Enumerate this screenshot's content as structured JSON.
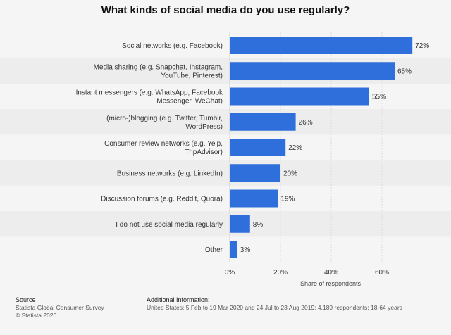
{
  "chart_data": {
    "type": "bar",
    "orientation": "horizontal",
    "title": "What kinds of social media do you use regularly?",
    "xlabel": "Share of respondents",
    "ylabel": "",
    "xlim": [
      0,
      80
    ],
    "xticks": [
      "0%",
      "20%",
      "40%",
      "60%"
    ],
    "xtick_values": [
      0,
      20,
      40,
      60
    ],
    "categories": [
      [
        "Social networks (e.g. Facebook)"
      ],
      [
        "Media sharing (e.g. Snapchat, Instagram,",
        "YouTube, Pinterest)"
      ],
      [
        "Instant messengers (e.g. WhatsApp, Facebook",
        "Messenger, WeChat)"
      ],
      [
        "(micro-)blogging (e.g. Twitter, Tumblr,",
        "WordPress)"
      ],
      [
        "Consumer review networks (e.g. Yelp,",
        "TripAdvisor)"
      ],
      [
        "Business networks (e.g. LinkedIn)"
      ],
      [
        "Discussion forums (e.g. Reddit, Quora)"
      ],
      [
        "I do not use social media regularly"
      ],
      [
        "Other"
      ]
    ],
    "values": [
      72,
      65,
      55,
      26,
      22,
      20,
      19,
      8,
      3
    ],
    "value_labels": [
      "72%",
      "65%",
      "55%",
      "26%",
      "22%",
      "20%",
      "19%",
      "8%",
      "3%"
    ],
    "bar_color": "#2f6fdc",
    "grid": true
  },
  "footer": {
    "source_title": "Source",
    "source_line1": "Statista Global Consumer Survey",
    "source_line2": "© Statista 2020",
    "info_title": "Additional Information:",
    "info_text": "United States; 5 Feb to 19 Mar 2020 and 24 Jul to 23 Aug 2019; 4,189 respondents; 18-64 years"
  }
}
